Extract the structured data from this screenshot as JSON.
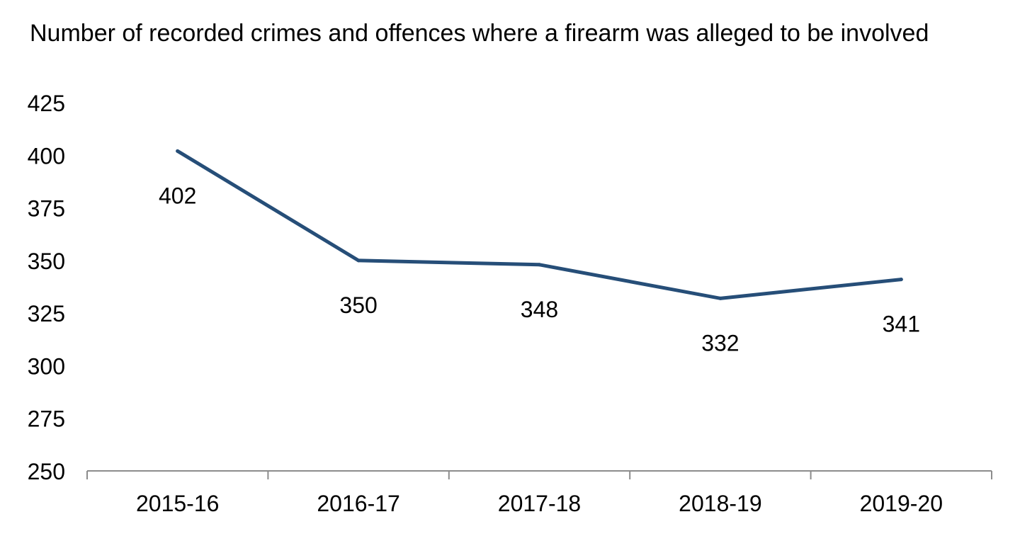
{
  "chart_data": {
    "type": "line",
    "title": "Number of recorded crimes and offences where a firearm was alleged to be involved",
    "xlabel": "",
    "ylabel": "",
    "categories": [
      "2015-16",
      "2016-17",
      "2017-18",
      "2018-19",
      "2019-20"
    ],
    "series": [
      {
        "values": [
          402,
          350,
          348,
          332,
          341
        ],
        "color": "#264e78"
      }
    ],
    "data_labels": [
      "402",
      "350",
      "348",
      "332",
      "341"
    ],
    "ylim": [
      250,
      425
    ],
    "yticks": [
      250,
      275,
      300,
      325,
      350,
      375,
      400,
      425
    ],
    "grid": false,
    "legend": "none"
  }
}
